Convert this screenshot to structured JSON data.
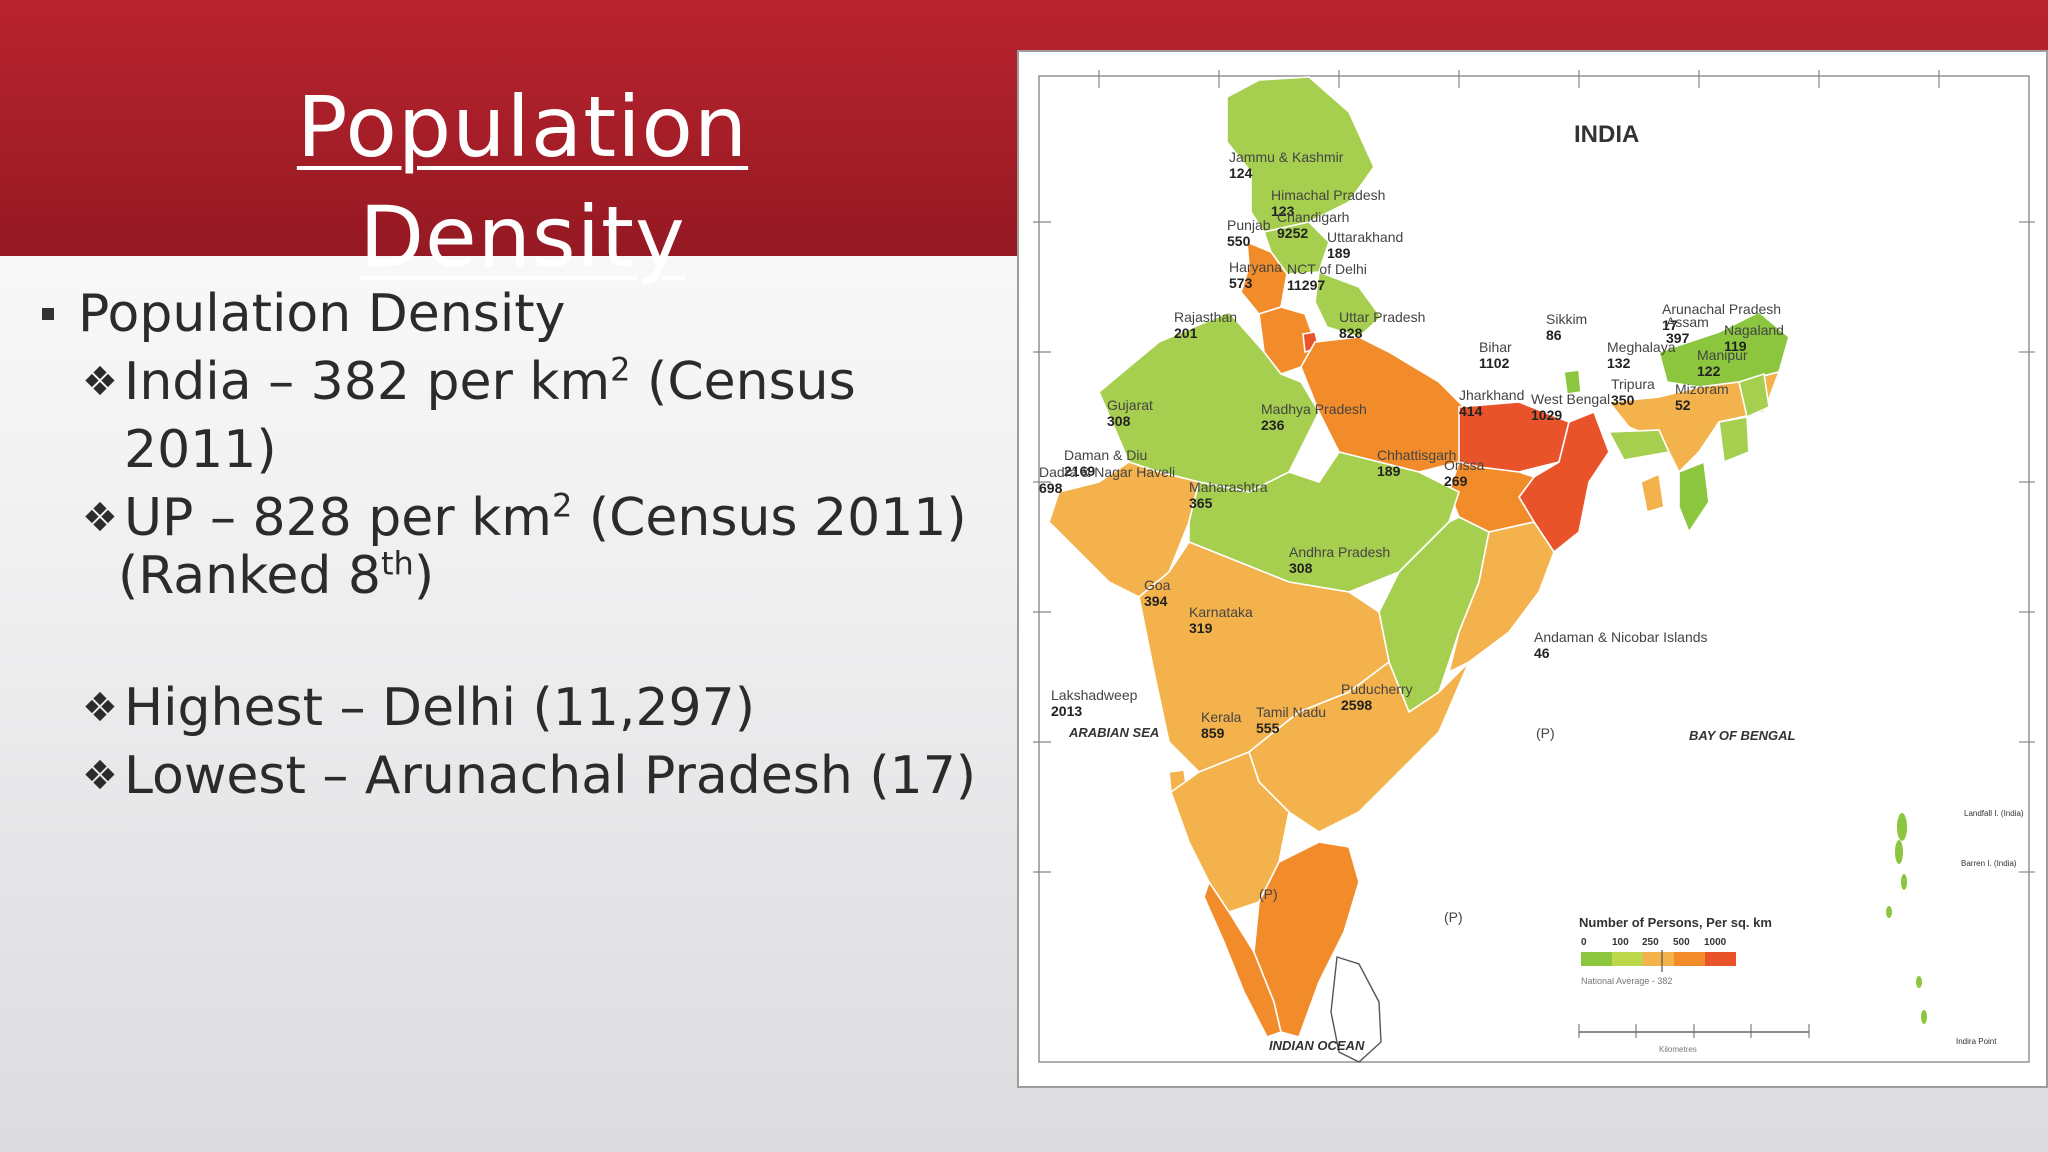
{
  "slide": {
    "title": "Population Density",
    "bullet": "Population Density",
    "india_line": "India – 382 per km",
    "india_sup": "2",
    "india_tail": " (Census 2011)",
    "up_line": "UP – 828 per km",
    "up_sup": "2",
    "up_tail": " (Census 2011)",
    "up_rank_pre": "(Ranked 8",
    "up_rank_sup": "th",
    "up_rank_post": ")",
    "highest": "Highest – Delhi (11,297)",
    "lowest": "Lowest – Arunachal Pradesh (17)"
  },
  "map": {
    "title": "INDIA",
    "seas": {
      "arabian": "ARABIAN SEA",
      "bengal": "BAY OF BENGAL",
      "indian": "INDIAN OCEAN"
    },
    "regions": [
      {
        "name": "Jammu & Kashmir",
        "value": "124"
      },
      {
        "name": "Himachal Pradesh",
        "value": "123"
      },
      {
        "name": "Punjab",
        "value": "550"
      },
      {
        "name": "Chandigarh",
        "value": "9252"
      },
      {
        "name": "Uttarakhand",
        "value": "189"
      },
      {
        "name": "Haryana",
        "value": "573"
      },
      {
        "name": "NCT of Delhi",
        "value": "11297"
      },
      {
        "name": "Rajasthan",
        "value": "201"
      },
      {
        "name": "Uttar Pradesh",
        "value": "828"
      },
      {
        "name": "Bihar",
        "value": "1102"
      },
      {
        "name": "Sikkim",
        "value": "86"
      },
      {
        "name": "Arunachal Pradesh",
        "value": "17"
      },
      {
        "name": "Assam",
        "value": "397"
      },
      {
        "name": "Nagaland",
        "value": "119"
      },
      {
        "name": "Meghalaya",
        "value": "132"
      },
      {
        "name": "Manipur",
        "value": "122"
      },
      {
        "name": "Tripura",
        "value": "350"
      },
      {
        "name": "Mizoram",
        "value": "52"
      },
      {
        "name": "Gujarat",
        "value": "308"
      },
      {
        "name": "Madhya Pradesh",
        "value": "236"
      },
      {
        "name": "Jharkhand",
        "value": "414"
      },
      {
        "name": "West Bengal",
        "value": "1029"
      },
      {
        "name": "Daman & Diu",
        "value": "2169"
      },
      {
        "name": "Dadra & Nagar Haveli",
        "value": "698"
      },
      {
        "name": "Chhattisgarh",
        "value": "189"
      },
      {
        "name": "Orissa",
        "value": "269"
      },
      {
        "name": "Maharashtra",
        "value": "365"
      },
      {
        "name": "Andhra Pradesh",
        "value": "308"
      },
      {
        "name": "Goa",
        "value": "394"
      },
      {
        "name": "Karnataka",
        "value": "319"
      },
      {
        "name": "Andaman & Nicobar Islands",
        "value": "46"
      },
      {
        "name": "Puducherry",
        "value": "2598"
      },
      {
        "name": "Lakshadweep",
        "value": "2013"
      },
      {
        "name": "Kerala",
        "value": "859"
      },
      {
        "name": "Tamil Nadu",
        "value": "555"
      }
    ],
    "legend": {
      "title": "Number of Persons, Per sq. km",
      "ticks": [
        "0",
        "100",
        "250",
        "500",
        "1000"
      ],
      "colors": [
        "#8cc63f",
        "#bcd84a",
        "#f4b24c",
        "#f28c2a",
        "#e8532a"
      ],
      "note": "National Average - 382"
    },
    "scale_label": "Kilometres",
    "inset_labels": {
      "landfall": "Landfall I. (India)",
      "barren": "Barren I. (India)",
      "indira": "Indira Point"
    },
    "marker_p": "(P)"
  },
  "colors": {
    "title_bar": "#a31d27",
    "low": "#8cc63f",
    "light_green": "#a6cf4f",
    "orange_light": "#f4b24c",
    "orange": "#f28c2a",
    "red": "#e8532a"
  }
}
